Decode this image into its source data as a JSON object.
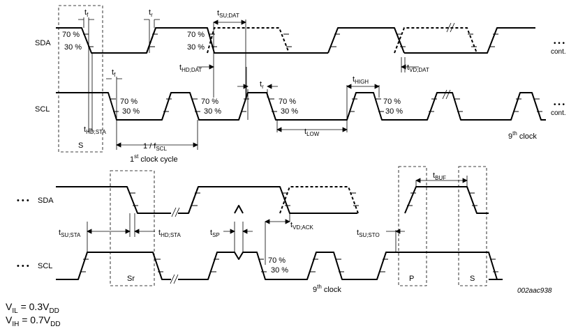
{
  "signals": {
    "sda": "SDA",
    "scl": "SCL",
    "sda_top": "SDA",
    "scl_top": "SCL",
    "ellipsis": "• • •",
    "cont_sda": "cont.",
    "cont_scl": "cont."
  },
  "levels": {
    "p70": "70 %",
    "p30": "30 %"
  },
  "timing": {
    "tf": "t",
    "tf_sub": "f",
    "tr": "t",
    "tr_sub": "r",
    "tsu_dat": "t",
    "tsu_dat_sub": "SU;DAT",
    "thd_dat": "t",
    "thd_dat_sub": "HD;DAT",
    "tvd_dat": "t",
    "tvd_dat_sub": "VD;DAT",
    "thd_sta": "t",
    "thd_sta_sub": "HD;STA",
    "tlow": "t",
    "tlow_sub": "LOW",
    "thigh": "t",
    "thigh_sub": "HIGH",
    "fscl_prefix": "1 / f",
    "fscl_sub": "SCL",
    "tsu_sta": "t",
    "tsu_sta_sub": "SU;STA",
    "tsp": "t",
    "tsp_sub": "SP",
    "tvd_ack": "t",
    "tvd_ack_sub": "VD;ACK",
    "tsu_sto": "t",
    "tsu_sto_sub": "SU;STO",
    "tbuf": "t",
    "tbuf_sub": "BUF"
  },
  "annotations": {
    "first_cycle_sup": "st",
    "first_cycle_num": "1",
    "first_cycle_text": " clock cycle",
    "ninth_num": "9",
    "ninth_sup": "th",
    "ninth_text": " clock",
    "start": "S",
    "repeated_start": "Sr",
    "stop": "P",
    "start2": "S",
    "figure_code": "002aac938"
  },
  "footer": {
    "vil_v": "V",
    "vil_sub": "IL",
    "vil_eq": " = 0.3V",
    "vil_dd": "DD",
    "vih_v": "V",
    "vih_sub": "IH",
    "vih_eq": " = 0.7V",
    "vih_dd": "DD"
  }
}
